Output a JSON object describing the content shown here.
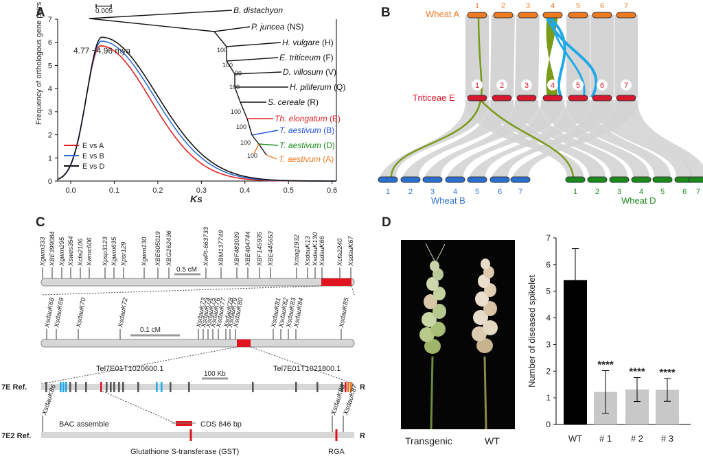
{
  "panels": {
    "a": "A",
    "b": "B",
    "c": "C",
    "d": "D"
  },
  "panelA": {
    "scale_bar": "0.005",
    "peak_label": "4.77 ~4.96 mya",
    "ylabel": "Frequency of orthologous gene pairs",
    "xlabel": "Ks",
    "legend": [
      "E vs A",
      "E vs B",
      "E vs D"
    ],
    "tree": {
      "leaves": [
        {
          "name": "B. distachyon",
          "suffix": ""
        },
        {
          "name": "P. juncea",
          "suffix": " (NS)"
        },
        {
          "name": "H. vulgare",
          "suffix": " (H)"
        },
        {
          "name": "E. triticeum",
          "suffix": " (F)"
        },
        {
          "name": "D. villosum",
          "suffix": " (V)"
        },
        {
          "name": "H. piliferum",
          "suffix": " (Q)"
        },
        {
          "name": "S. cereale",
          "suffix": " (R)"
        },
        {
          "name": "Th. elongatum",
          "suffix": " (E)"
        },
        {
          "name": "T. aestivum",
          "suffix": " (B)"
        },
        {
          "name": "T. aestivum",
          "suffix": " (D)"
        },
        {
          "name": "T. aestivum",
          "suffix": " (A)"
        }
      ],
      "leaf_colors": [
        "#111111",
        "#111111",
        "#111111",
        "#111111",
        "#111111",
        "#111111",
        "#111111",
        "#e02020",
        "#2050e0",
        "#1a8a1a",
        "#f07a20"
      ],
      "bootstraps": [
        "100",
        "100",
        "99",
        "100",
        "100",
        "100",
        "100",
        "100"
      ]
    }
  },
  "chart_data": [
    {
      "type": "line",
      "xlabel": "Ks",
      "ylabel": "Frequency of orthologous gene pairs",
      "xlim": [
        -0.03,
        0.61
      ],
      "ylim": [
        0,
        7
      ],
      "xticks": [
        "0.0",
        "0.1",
        "0.2",
        "0.3",
        "0.4",
        "0.5",
        "0.6"
      ],
      "yticks": [
        "0",
        "1",
        "2",
        "3",
        "4",
        "5",
        "6",
        "7"
      ],
      "series": [
        {
          "name": "E vs A",
          "color": "#e02020",
          "peak_x": 0.068,
          "peak_y": 5.85,
          "left_w": 0.033,
          "right_w": 0.085
        },
        {
          "name": "E vs B",
          "color": "#2a6fd0",
          "peak_x": 0.07,
          "peak_y": 6.05,
          "left_w": 0.034,
          "right_w": 0.09
        },
        {
          "name": "E vs D",
          "color": "#111111",
          "peak_x": 0.071,
          "peak_y": 6.22,
          "left_w": 0.034,
          "right_w": 0.093
        }
      ],
      "annotation": "4.77 ~4.96 mya"
    },
    {
      "type": "bar",
      "categories": [
        "WT",
        "# 1",
        "# 2",
        "# 3"
      ],
      "values": [
        5.42,
        1.22,
        1.31,
        1.3
      ],
      "errors": [
        1.18,
        0.8,
        0.45,
        0.43
      ],
      "significance": [
        "",
        "****",
        "****",
        "****"
      ],
      "colors": [
        "#000000",
        "#c8c8c8",
        "#c8c8c8",
        "#c8c8c8"
      ],
      "ylabel": "Number of diseased spikelet",
      "ylim": [
        0,
        7
      ],
      "yticks": [
        "0",
        "1",
        "2",
        "3",
        "4",
        "5",
        "6",
        "7"
      ]
    }
  ],
  "panelB": {
    "wheatA": "Wheat A",
    "triticeaeE": "Triticeae E",
    "wheatB": "Wheat B",
    "wheatD": "Wheat D",
    "chrom_labels": [
      "1",
      "2",
      "3",
      "4",
      "5",
      "6",
      "7"
    ],
    "colors": {
      "A": "#f07a20",
      "E": "#d81830",
      "B": "#2a6fd0",
      "D": "#1a8a1a",
      "link": "#d4d4d4",
      "olive": "#7a9a1a",
      "cyan": "#20a8e8"
    }
  },
  "panelC": {
    "row1_markers": [
      "Xgwm333",
      "XBE399084",
      "Xgwm295",
      "Xswes354",
      "Xcfa2106",
      "Xwmc606",
      "Xpsp3123",
      "Xgwm635",
      "Xpsr129",
      "Xgwm130",
      "XBE605019",
      "XBG262436",
      "XwPt-663733",
      "XBM137749",
      "XBF483039",
      "XBE404744",
      "XBF145935",
      "XBE445653",
      "Xmag1932",
      "XsdauK13",
      "XsdauK130",
      "XsdauK66",
      "Xcfa2240",
      "XsdauK67"
    ],
    "row1_scale": "0.5 cM",
    "row2_markers": [
      "XsdauK68",
      "XsdauK69",
      "XsdauK70",
      "XsdauK72",
      "XsdauK73",
      "XsdauK74",
      "XsdauK75",
      "XsdauK76",
      "XsdauK77",
      "XsdauK78",
      "XsdauK79",
      "XsdauK80",
      "XsdauK81",
      "XsdauK82",
      "XsdauK83",
      "XsdauK84",
      "XsdauK85"
    ],
    "row2_scale": "0.1 cM",
    "ref_label": "7E Ref.",
    "gene1": "Tel7E01T1020600.1",
    "gene2": "Tel7E01T1021800.1",
    "scale3": "100 Kb",
    "r_label": "R",
    "k86": "XsdauK86",
    "k88": "XsdauK88",
    "k87": "XsdauK87",
    "bac": "BAC assemble",
    "cds": "CDS 846 bp",
    "e2_label": "7E2 Ref.",
    "gst": "Glutathione S-transferase (GST)",
    "rga": "RGA"
  },
  "panelD": {
    "transgenic": "Transgenic",
    "wt": "WT"
  }
}
